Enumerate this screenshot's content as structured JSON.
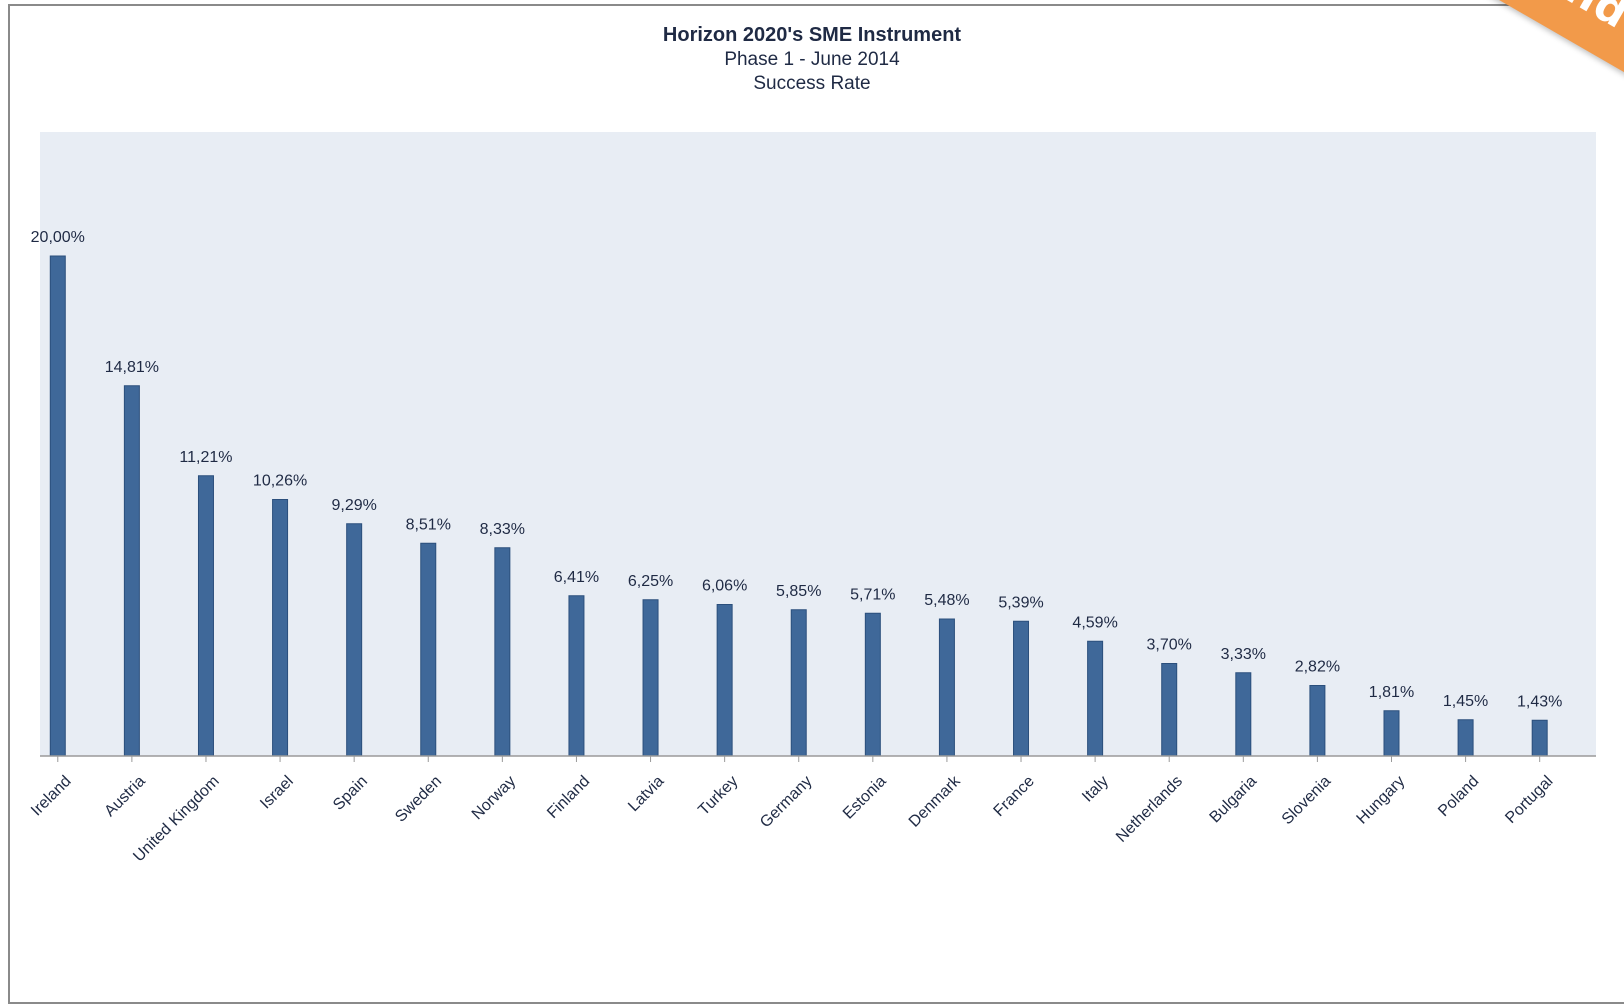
{
  "ribbon": {
    "text": "funded",
    "color": "#f29a4a"
  },
  "chart_data": {
    "type": "bar",
    "title": "Horizon 2020's SME Instrument",
    "subtitle": [
      "Phase 1 - June 2014",
      "Success Rate"
    ],
    "xlabel": "",
    "ylabel": "",
    "grid": false,
    "legend": "none",
    "ylim": [
      0,
      20
    ],
    "value_suffix": "%",
    "decimal_separator": ",",
    "bar_color": "#3f6899",
    "plot_background": "#e8edf4",
    "categories": [
      "Ireland",
      "Austria",
      "United Kingdom",
      "Israel",
      "Spain",
      "Sweden",
      "Norway",
      "Finland",
      "Latvia",
      "Turkey",
      "Germany",
      "Estonia",
      "Denmark",
      "France",
      "Italy",
      "Netherlands",
      "Bulgaria",
      "Slovenia",
      "Hungary",
      "Poland",
      "Portugal"
    ],
    "values": [
      20.0,
      14.81,
      11.21,
      10.26,
      9.29,
      8.51,
      8.33,
      6.41,
      6.25,
      6.06,
      5.85,
      5.71,
      5.48,
      5.39,
      4.59,
      3.7,
      3.33,
      2.82,
      1.81,
      1.45,
      1.43
    ],
    "data_labels": [
      "20,00%",
      "14,81%",
      "11,21%",
      "10,26%",
      "9,29%",
      "8,51%",
      "8,33%",
      "6,41%",
      "6,25%",
      "6,06%",
      "5,85%",
      "5,71%",
      "5,48%",
      "5,39%",
      "4,59%",
      "3,70%",
      "3,33%",
      "2,82%",
      "1,81%",
      "1,45%",
      "1,43%"
    ]
  }
}
